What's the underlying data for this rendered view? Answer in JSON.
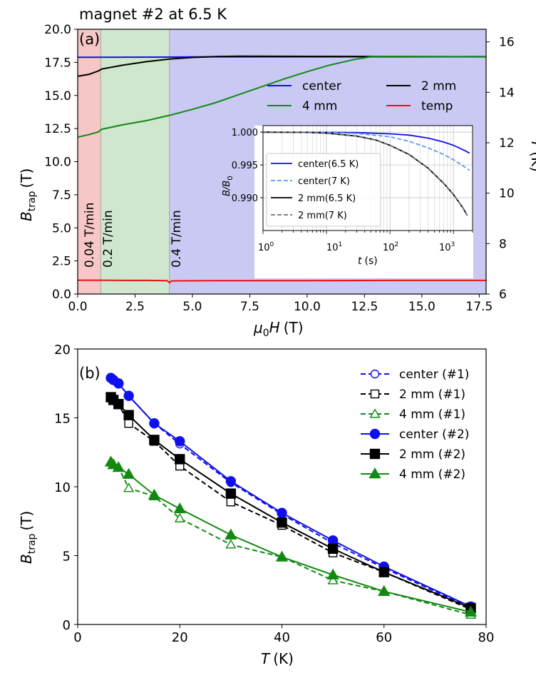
{
  "panel_a": {
    "header": "magnet #2 at 6.5 K",
    "label": "(a)",
    "ylabel_main": "B",
    "ylabel_sub": "trap",
    "ylabel_unit": "(T)",
    "ylabel_right": "T",
    "ylabel_right_unit": "(K)",
    "xlabel_main": "μ",
    "xlabel_sub": "0",
    "xlabel_rest": "H",
    "xlabel_unit": "(T)",
    "rate_labels": [
      "0.04 T/min",
      "0.2 T/min",
      "0.4 T/min"
    ],
    "inset_ylabel": "B/B",
    "inset_ylabel_sub": "0",
    "inset_xlabel": "t",
    "inset_xlabel_unit": "(s)",
    "inset_xticks": [
      "10",
      "10",
      "10",
      "10"
    ],
    "inset_xtick_exps": [
      "0",
      "1",
      "2",
      "3"
    ]
  },
  "panel_b": {
    "label": "(b)",
    "ylabel_main": "B",
    "ylabel_sub": "trap",
    "ylabel_unit": "(T)",
    "xlabel_main": "T",
    "xlabel_unit": "(K)"
  },
  "colors": {
    "blue": "#1010ee",
    "black": "#000000",
    "green": "#128a12",
    "red": "#ee1010",
    "lightblue": "#5b9bea",
    "gray": "#707070",
    "band_red": "#f7c6c6",
    "band_green": "#cfe6cf",
    "band_blue": "#c9c9f3"
  },
  "chart_data": [
    {
      "type": "line",
      "title": "magnet #2 at 6.5 K",
      "xlabel": "μ0H (T)",
      "ylabel": "Btrap (T)",
      "ylabel_right": "T (K)",
      "xlim": [
        0,
        17.8
      ],
      "ylim": [
        0,
        20
      ],
      "ylim_right": [
        6,
        16.5
      ],
      "xticks": [
        "0.0",
        "2.5",
        "5.0",
        "7.5",
        "10.0",
        "12.5",
        "15.0",
        "17.5"
      ],
      "yticks": [
        "0.0",
        "2.5",
        "5.0",
        "7.5",
        "10.0",
        "12.5",
        "15.0",
        "17.5",
        "20.0"
      ],
      "yticks_right": [
        "6",
        "8",
        "10",
        "12",
        "14",
        "16"
      ],
      "bands": [
        {
          "from": 0,
          "to": 1,
          "label": "0.04 T/min",
          "color": "red"
        },
        {
          "from": 1,
          "to": 4,
          "label": "0.2 T/min",
          "color": "green"
        },
        {
          "from": 4,
          "to": 17.8,
          "label": "0.4 T/min",
          "color": "blue"
        }
      ],
      "legend_position": "upper right",
      "series": [
        {
          "name": "center",
          "color": "blue",
          "axis": "left",
          "x": [
            0,
            4,
            6,
            17.8
          ],
          "y": [
            17.88,
            17.9,
            17.92,
            17.92
          ]
        },
        {
          "name": "2 mm",
          "color": "black",
          "axis": "left",
          "x": [
            0,
            0.5,
            0.9,
            1.05,
            2,
            3,
            4,
            5,
            6,
            7,
            10,
            17.8
          ],
          "y": [
            16.45,
            16.6,
            16.85,
            17.0,
            17.3,
            17.55,
            17.75,
            17.87,
            17.94,
            17.96,
            17.95,
            17.93
          ]
        },
        {
          "name": "4 mm",
          "color": "green",
          "axis": "left",
          "x": [
            0,
            0.5,
            0.9,
            1.05,
            2,
            3,
            4,
            5,
            6,
            7,
            8,
            9,
            10,
            11,
            12,
            12.8,
            13.5,
            15,
            17.8
          ],
          "y": [
            11.85,
            12.05,
            12.25,
            12.45,
            12.8,
            13.1,
            13.5,
            13.95,
            14.45,
            15.05,
            15.65,
            16.25,
            16.8,
            17.3,
            17.7,
            17.93,
            17.95,
            17.93,
            17.92
          ]
        },
        {
          "name": "temp",
          "color": "red",
          "axis": "right",
          "x": [
            0,
            1,
            2,
            3,
            3.9,
            4,
            4.1,
            6,
            10,
            14,
            17.8
          ],
          "y": [
            6.55,
            6.55,
            6.54,
            6.54,
            6.53,
            6.45,
            6.52,
            6.53,
            6.53,
            6.54,
            6.54
          ]
        }
      ],
      "inset": {
        "type": "line",
        "xscale": "log",
        "xlim": [
          1,
          2000
        ],
        "ylim": [
          0.985,
          1.001
        ],
        "yticks": [
          "1.000",
          "0.995",
          "0.990"
        ],
        "xlabel": "t (s)",
        "ylabel": "B/B0",
        "series": [
          {
            "name": "center(6.5 K)",
            "color": "blue",
            "dash": "solid",
            "t": [
              1,
              10,
              30,
              100,
              200,
              400,
              700,
              1000,
              1500,
              1800
            ],
            "y": [
              1.0,
              0.99998,
              0.99993,
              0.99975,
              0.99955,
              0.9991,
              0.9985,
              0.998,
              0.9972,
              0.9968
            ]
          },
          {
            "name": "center(7 K)",
            "color": "lightblue",
            "dash": "dashed",
            "t": [
              1,
              10,
              30,
              100,
              200,
              400,
              700,
              1000,
              1500,
              1800
            ],
            "y": [
              1.0,
              0.99997,
              0.9998,
              0.9993,
              0.9986,
              0.9976,
              0.9966,
              0.9958,
              0.9947,
              0.9942
            ]
          },
          {
            "name": "2 mm(6.5 K)",
            "color": "black",
            "dash": "solid",
            "t": [
              1,
              5,
              10,
              30,
              60,
              100,
              200,
              400,
              700,
              1000,
              1400,
              1650
            ],
            "y": [
              1.0,
              0.99997,
              0.99985,
              0.9994,
              0.9988,
              0.998,
              0.9966,
              0.9945,
              0.9922,
              0.9905,
              0.9885,
              0.9873
            ]
          },
          {
            "name": "2 mm(7 K)",
            "color": "gray",
            "dash": "dashed",
            "t": [
              1,
              5,
              10,
              30,
              60,
              100,
              200,
              400,
              700,
              1000,
              1400,
              1650
            ],
            "y": [
              1.0,
              0.99996,
              0.99983,
              0.99938,
              0.99878,
              0.99798,
              0.99658,
              0.99448,
              0.99218,
              0.99048,
              0.98848,
              0.98728
            ]
          }
        ]
      }
    },
    {
      "type": "line",
      "xlabel": "T (K)",
      "ylabel": "Btrap (T)",
      "xlim": [
        0,
        80
      ],
      "ylim": [
        0,
        20
      ],
      "xticks": [
        "0",
        "20",
        "40",
        "60",
        "80"
      ],
      "yticks": [
        "0",
        "5",
        "10",
        "15",
        "20"
      ],
      "legend_position": "upper right",
      "series": [
        {
          "name": "center (#1)",
          "color": "blue",
          "marker": "circle-open",
          "dash": "dashed",
          "x": [
            6.5,
            7,
            8,
            10,
            15,
            20,
            30,
            40,
            50,
            60,
            77
          ],
          "y": [
            17.9,
            17.8,
            17.5,
            16.6,
            14.6,
            13.1,
            10.3,
            8.0,
            5.9,
            4.1,
            1.2
          ]
        },
        {
          "name": "2 mm  (#1)",
          "color": "black",
          "marker": "square-open",
          "dash": "dashed",
          "x": [
            6.5,
            7,
            8,
            10,
            15,
            20,
            30,
            40,
            50,
            60,
            77
          ],
          "y": [
            16.5,
            16.3,
            16.0,
            14.6,
            13.3,
            11.5,
            8.9,
            7.2,
            5.2,
            3.8,
            1.1
          ]
        },
        {
          "name": "4 mm  (#1)",
          "color": "green",
          "marker": "triangle-open",
          "dash": "dashed",
          "x": [
            6.5,
            7,
            8,
            10,
            15,
            20,
            30,
            40,
            50,
            60,
            77
          ],
          "y": [
            11.8,
            11.6,
            11.4,
            9.9,
            9.3,
            7.7,
            5.8,
            4.9,
            3.2,
            2.4,
            0.7
          ]
        },
        {
          "name": "center (#2)",
          "color": "blue",
          "marker": "circle-filled",
          "dash": "solid",
          "x": [
            6.5,
            7,
            8,
            10,
            15,
            20,
            30,
            40,
            50,
            60,
            77
          ],
          "y": [
            17.9,
            17.75,
            17.5,
            16.6,
            14.6,
            13.3,
            10.4,
            8.1,
            6.1,
            4.2,
            1.3
          ]
        },
        {
          "name": "2 mm  (#2)",
          "color": "black",
          "marker": "square-filled",
          "dash": "solid",
          "x": [
            6.5,
            7,
            8,
            10,
            15,
            20,
            30,
            40,
            50,
            60,
            77
          ],
          "y": [
            16.5,
            16.3,
            16.0,
            15.2,
            13.4,
            12.0,
            9.5,
            7.4,
            5.5,
            3.8,
            1.2
          ]
        },
        {
          "name": "4 mm  (#2)",
          "color": "green",
          "marker": "triangle-filled",
          "dash": "solid",
          "x": [
            6.5,
            7,
            8,
            10,
            15,
            20,
            30,
            40,
            50,
            60,
            77
          ],
          "y": [
            11.8,
            11.6,
            11.4,
            10.9,
            9.4,
            8.4,
            6.5,
            4.9,
            3.6,
            2.4,
            0.9
          ]
        }
      ]
    }
  ]
}
